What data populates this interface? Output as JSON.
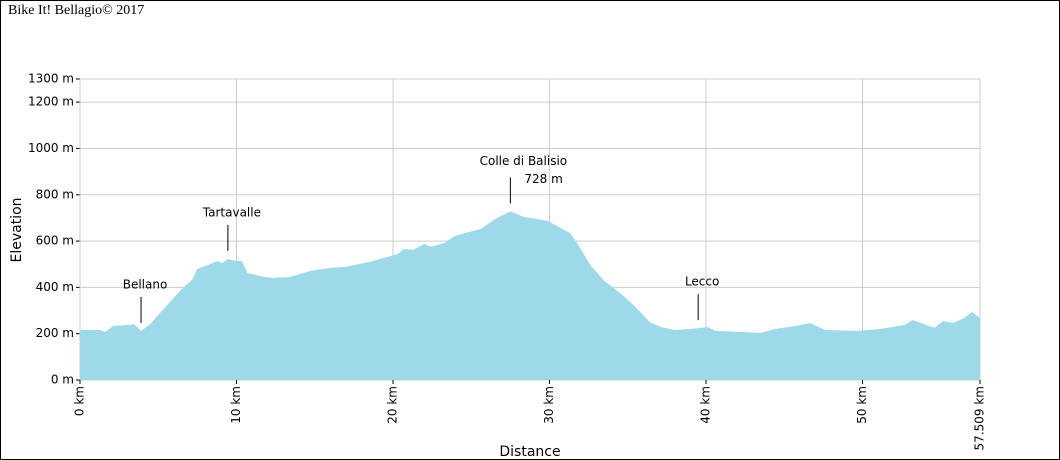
{
  "chart_data": {
    "type": "area",
    "title": "Bike It! Bellagio© 2017",
    "xlabel": "Distance",
    "ylabel": "Elevation",
    "color": "#9dd9e8",
    "grid": true,
    "x": [
      0,
      1.28,
      1.6,
      2.1,
      3.2,
      3.45,
      3.9,
      4.5,
      5.1,
      5.75,
      6.5,
      7.15,
      7.5,
      8.2,
      8.75,
      9.1,
      9.45,
      9.9,
      10.35,
      10.7,
      11.8,
      12.3,
      13.4,
      14.7,
      16.0,
      16.9,
      18.5,
      20.3,
      20.7,
      21.3,
      22.0,
      22.4,
      23.3,
      23.95,
      24.6,
      25.6,
      26.65,
      27.5,
      28.4,
      29.9,
      30.7,
      31.3,
      31.8,
      32.6,
      33.5,
      34.6,
      35.5,
      36.4,
      37.1,
      38.0,
      39.0,
      40.1,
      40.6,
      42.5,
      43.5,
      44.4,
      45.7,
      46.65,
      47.6,
      49.7,
      51.1,
      52.7,
      53.2,
      53.9,
      54.6,
      55.15,
      55.8,
      56.5,
      57.0,
      57.509
    ],
    "values": [
      216,
      216,
      207,
      233,
      238,
      242,
      212,
      242,
      289,
      337,
      393,
      432,
      480,
      497,
      514,
      505,
      523,
      514,
      514,
      462,
      445,
      441,
      445,
      471,
      484,
      488,
      510,
      544,
      566,
      562,
      588,
      575,
      592,
      622,
      635,
      652,
      700,
      728,
      704,
      687,
      657,
      635,
      588,
      497,
      428,
      371,
      315,
      251,
      229,
      216,
      220,
      229,
      212,
      207,
      203,
      220,
      233,
      246,
      216,
      212,
      220,
      238,
      259,
      242,
      225,
      255,
      246,
      268,
      294,
      268
    ],
    "xlim": [
      0,
      57.509
    ],
    "ylim": [
      0,
      1300
    ],
    "xticks": [
      {
        "value": 0,
        "label": "0 km"
      },
      {
        "value": 10,
        "label": "10 km"
      },
      {
        "value": 20,
        "label": "20 km"
      },
      {
        "value": 30,
        "label": "30 km"
      },
      {
        "value": 40,
        "label": "40 km"
      },
      {
        "value": 50,
        "label": "50 km"
      },
      {
        "value": 57.509,
        "label": "57.509 km"
      }
    ],
    "yticks": [
      {
        "value": 0,
        "label": "0 m"
      },
      {
        "value": 200,
        "label": "200 m"
      },
      {
        "value": 400,
        "label": "400 m"
      },
      {
        "value": 600,
        "label": "600 m"
      },
      {
        "value": 800,
        "label": "800 m"
      },
      {
        "value": 1000,
        "label": "1000 m"
      },
      {
        "value": 1200,
        "label": "1200 m"
      },
      {
        "value": 1300,
        "label": "1300 m"
      }
    ],
    "annotations": [
      {
        "text": "Bellano",
        "x": 3.9
      },
      {
        "text": "Tartavalle",
        "x": 9.45
      },
      {
        "text": "Colle di Balisio",
        "x": 27.5,
        "note": "728 m"
      },
      {
        "text": "Lecco",
        "x": 39.5
      }
    ]
  }
}
